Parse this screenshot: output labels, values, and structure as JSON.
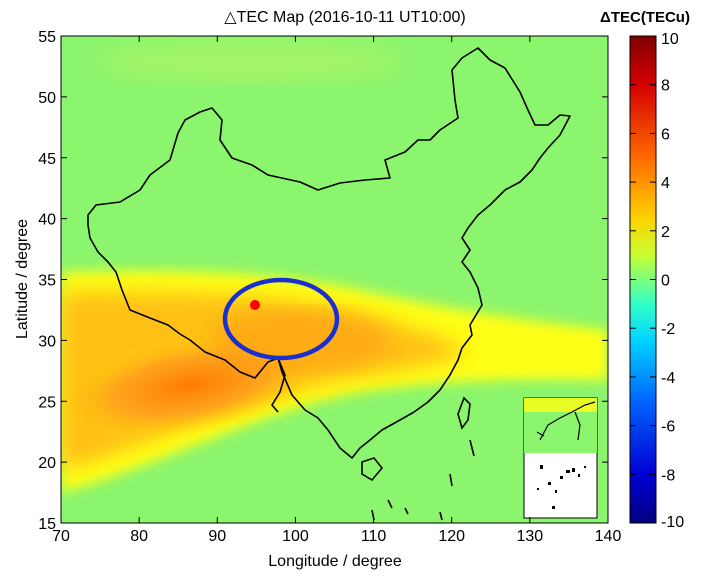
{
  "chart_data": {
    "type": "heatmap",
    "title": "△TEC Map (2016-10-11 UT10:00)",
    "xlabel": "Longitude / degree",
    "ylabel": "Latitude / degree",
    "xlim": [
      70,
      140
    ],
    "ylim": [
      15,
      55
    ],
    "xticks": [
      70,
      80,
      90,
      100,
      110,
      120,
      130,
      140
    ],
    "yticks": [
      15,
      20,
      25,
      30,
      35,
      40,
      45,
      50,
      55
    ],
    "colorbar": {
      "label": "ΔTEC(TECu)",
      "min": -10,
      "max": 10,
      "ticks": [
        10,
        8,
        6,
        4,
        2,
        0,
        -2,
        -4,
        -6,
        -8,
        -10
      ],
      "colormap": "jet"
    },
    "background_value": 0.8,
    "anomaly_band": {
      "description_values": "positive anomaly band, peak about 5 TECu",
      "center_lon": 86,
      "center_lat": 26,
      "peak_value": 5
    },
    "epicenter": {
      "lon": 95,
      "lat": 32.8,
      "color": "#ff0000"
    },
    "highlight_ellipse": {
      "center_lon": 97.5,
      "center_lat": 31.8,
      "color": "#1a2fd0"
    },
    "colors": {
      "background": "#8cf56e",
      "band_edge": "#ffff00",
      "band_core": "#ff8c0a"
    }
  }
}
